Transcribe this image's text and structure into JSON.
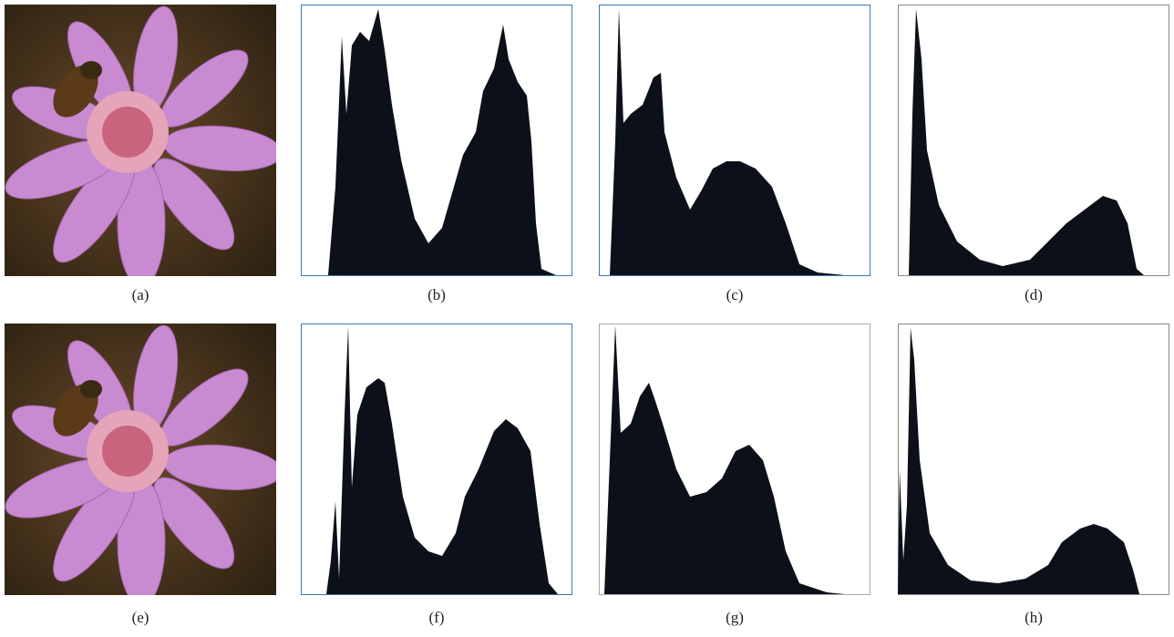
{
  "panels": [
    {
      "label": "(a)"
    },
    {
      "label": "(b)"
    },
    {
      "label": "(c)"
    },
    {
      "label": "(d)"
    },
    {
      "label": "(e)"
    },
    {
      "label": "(f)"
    },
    {
      "label": "(g)"
    },
    {
      "label": "(h)"
    }
  ]
}
